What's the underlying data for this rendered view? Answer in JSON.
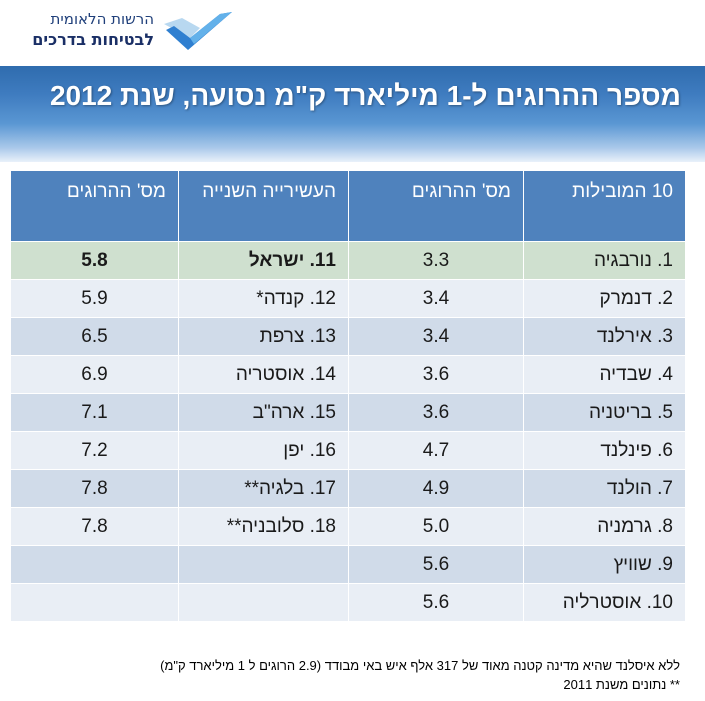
{
  "logo": {
    "line1": "הרשות הלאומית",
    "line2": "לבטיחות בדרכים"
  },
  "title": "מספר ההרוגים ל-1 מיליארד ק\"מ נסועה, שנת 2012",
  "table": {
    "headers": {
      "col1": "10 המובילות",
      "col2": "מס' ההרוגים",
      "col3": "העשירייה השנייה",
      "col4": "מס' ההרוגים"
    },
    "rows": [
      {
        "c1": "1. נורבגיה",
        "c2": "3.3",
        "c3": "11. ישראל",
        "c4": "5.8"
      },
      {
        "c1": "2. דנמרק",
        "c2": "3.4",
        "c3": "12. קנדה*",
        "c4": "5.9"
      },
      {
        "c1": "3. אירלנד",
        "c2": "3.4",
        "c3": "13. צרפת",
        "c4": "6.5"
      },
      {
        "c1": "4. שבדיה",
        "c2": "3.6",
        "c3": "14. אוסטריה",
        "c4": "6.9"
      },
      {
        "c1": "5. בריטניה",
        "c2": "3.6",
        "c3": "15. ארה\"ב",
        "c4": "7.1"
      },
      {
        "c1": "6. פינלנד",
        "c2": "4.7",
        "c3": "16. יפן",
        "c4": "7.2"
      },
      {
        "c1": "7. הולנד",
        "c2": "4.9",
        "c3": "17. בלגיה**",
        "c4": "7.8"
      },
      {
        "c1": "8. גרמניה",
        "c2": "5.0",
        "c3": "18. סלובניה**",
        "c4": "7.8"
      },
      {
        "c1": "9. שוויץ",
        "c2": "5.6",
        "c3": "",
        "c4": ""
      },
      {
        "c1": "10. אוסטרליה",
        "c2": "5.6",
        "c3": "",
        "c4": ""
      }
    ]
  },
  "footnotes": {
    "line1": "ללא איסלנד שהיא מדינה קטנה מאוד של  317  אלף איש באי מבודד  (2.9 הרוגים ל 1 מיליארד ק\"מ)",
    "line2": "** נתונים משנת 2011"
  },
  "colors": {
    "header_blue": "#4f82bd",
    "row_dark": "#d0dbe9",
    "row_light": "#e9eef5",
    "highlight_row": "#cfe0cf",
    "highlight_text": "#2e8b2e"
  }
}
